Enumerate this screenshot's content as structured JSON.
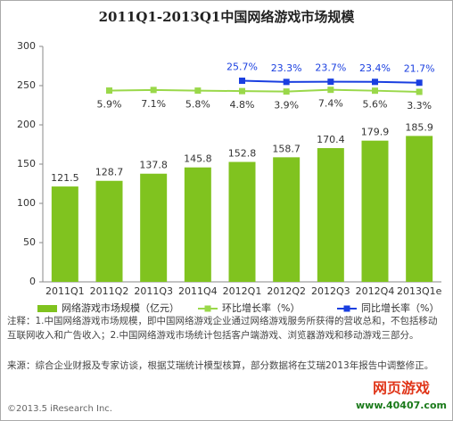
{
  "chart_data": {
    "type": "bar",
    "title": "2011Q1-2013Q1中国网络游戏市场规模",
    "categories": [
      "2011Q1",
      "2011Q2",
      "2011Q3",
      "2011Q4",
      "2012Q1",
      "2012Q2",
      "2012Q3",
      "2012Q4",
      "2013Q1e"
    ],
    "series": [
      {
        "name": "网络游戏市场规模（亿元）",
        "type": "bar",
        "color": "#80c31f",
        "values": [
          121.5,
          128.7,
          137.8,
          145.8,
          152.8,
          158.7,
          170.4,
          179.9,
          185.9
        ]
      },
      {
        "name": "环比增长率（%）",
        "type": "line",
        "axis": "y2",
        "color": "#9ad84a",
        "values": [
          null,
          5.9,
          7.1,
          5.8,
          4.8,
          3.9,
          7.4,
          5.6,
          3.3
        ],
        "value_labels": [
          null,
          "5.9%",
          "7.1%",
          "5.8%",
          "4.8%",
          "3.9%",
          "7.4%",
          "5.6%",
          "3.3%"
        ]
      },
      {
        "name": "同比增长率（%）",
        "type": "line",
        "axis": "y2",
        "color": "#1a3fe0",
        "values": [
          null,
          null,
          null,
          null,
          25.7,
          23.3,
          23.7,
          23.4,
          21.7
        ],
        "value_labels": [
          null,
          null,
          null,
          null,
          "25.7%",
          "23.3%",
          "23.7%",
          "23.4%",
          "21.7%"
        ]
      }
    ],
    "ylim": [
      0,
      300
    ],
    "yticks": [
      0,
      50,
      100,
      150,
      200,
      250,
      300
    ],
    "y2lim": [
      -380,
      95
    ],
    "notes": [
      "注释：1.中国网络游戏市场规模，即中国网络游戏企业通过网络游戏服务所获得的营收总和，不包括移动互联网收入和广告收入；2.中国网络游戏市场统计包括客户端游戏、浏览器游戏和移动游戏三部分。",
      "来源：综合企业财报及专家访谈，根据艾瑞统计模型核算，部分数据将在艾瑞2013年报告中调整修正。"
    ],
    "footer": "©2013.5 iResearch Inc.",
    "logo": [
      "网页游戏",
      "www.40407.com"
    ]
  }
}
